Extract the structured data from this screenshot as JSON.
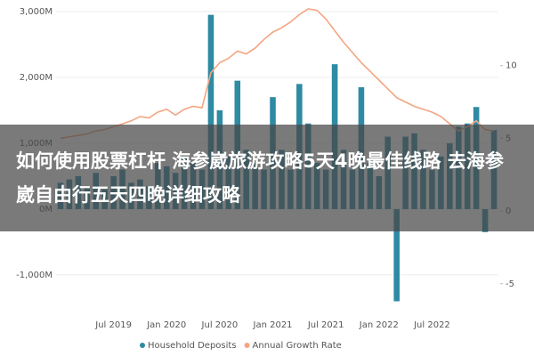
{
  "chart_data": {
    "type": "bar-line",
    "categories": [
      null,
      null,
      null,
      null,
      null,
      null,
      "Jul 2019",
      null,
      null,
      null,
      null,
      null,
      "Jan 2020",
      null,
      null,
      null,
      null,
      null,
      "Jul 2020",
      null,
      null,
      null,
      null,
      null,
      "Jan 2021",
      null,
      null,
      null,
      null,
      null,
      "Jul 2021",
      null,
      null,
      null,
      null,
      null,
      "Jan 2022",
      null,
      null,
      null,
      null,
      null,
      "Jul 2022",
      null,
      null,
      null,
      null,
      null,
      null,
      null
    ],
    "series": [
      {
        "name": "Household Deposits",
        "color": "#2f8aa3",
        "type": "bar",
        "values": [
          400,
          450,
          500,
          350,
          550,
          300,
          500,
          600,
          400,
          450,
          350,
          700,
          650,
          550,
          800,
          700,
          600,
          2950,
          1500,
          800,
          1950,
          900,
          700,
          600,
          1700,
          900,
          600,
          1900,
          1300,
          700,
          600,
          2200,
          900,
          600,
          1850,
          700,
          500,
          1100,
          -1400,
          1100,
          1150,
          900,
          600,
          800,
          1000,
          1250,
          1300,
          1550,
          -350,
          1200
        ]
      },
      {
        "name": "Annual Growth Rate",
        "color": "#f4a582",
        "type": "line",
        "axis": "y2",
        "values": [
          5.0,
          5.1,
          5.2,
          5.3,
          5.5,
          5.6,
          5.8,
          6.0,
          6.2,
          6.5,
          6.4,
          6.8,
          7.0,
          6.6,
          7.0,
          7.2,
          7.1,
          9.5,
          10.2,
          10.5,
          11.0,
          10.8,
          11.2,
          11.8,
          12.3,
          12.6,
          13.0,
          13.5,
          13.9,
          13.8,
          13.2,
          12.4,
          11.6,
          10.9,
          10.2,
          9.6,
          9.0,
          8.4,
          7.8,
          7.5,
          7.2,
          7.0,
          6.8,
          6.5,
          6.0,
          5.5,
          5.8,
          6.2,
          5.6,
          5.5
        ]
      }
    ],
    "ylim": [
      -1420,
      3040
    ],
    "yticks": [
      {
        "value": -1000,
        "label": "-1,000M"
      },
      {
        "value": 0,
        "label": "0M"
      },
      {
        "value": 1000,
        "label": "1,000M"
      },
      {
        "value": 2000,
        "label": "2,000M"
      },
      {
        "value": 3000,
        "label": "3,000M"
      }
    ],
    "y2lim": [
      -6.3,
      13.9
    ],
    "y2ticks": [
      -5,
      0,
      5,
      10
    ],
    "grid": true,
    "legend": "bottom"
  },
  "overlay": {
    "text": "如何使用股票杠杆 海参崴旅游攻略5天4晚最佳线路 去海参崴自由行五天四晚详细攻略"
  }
}
